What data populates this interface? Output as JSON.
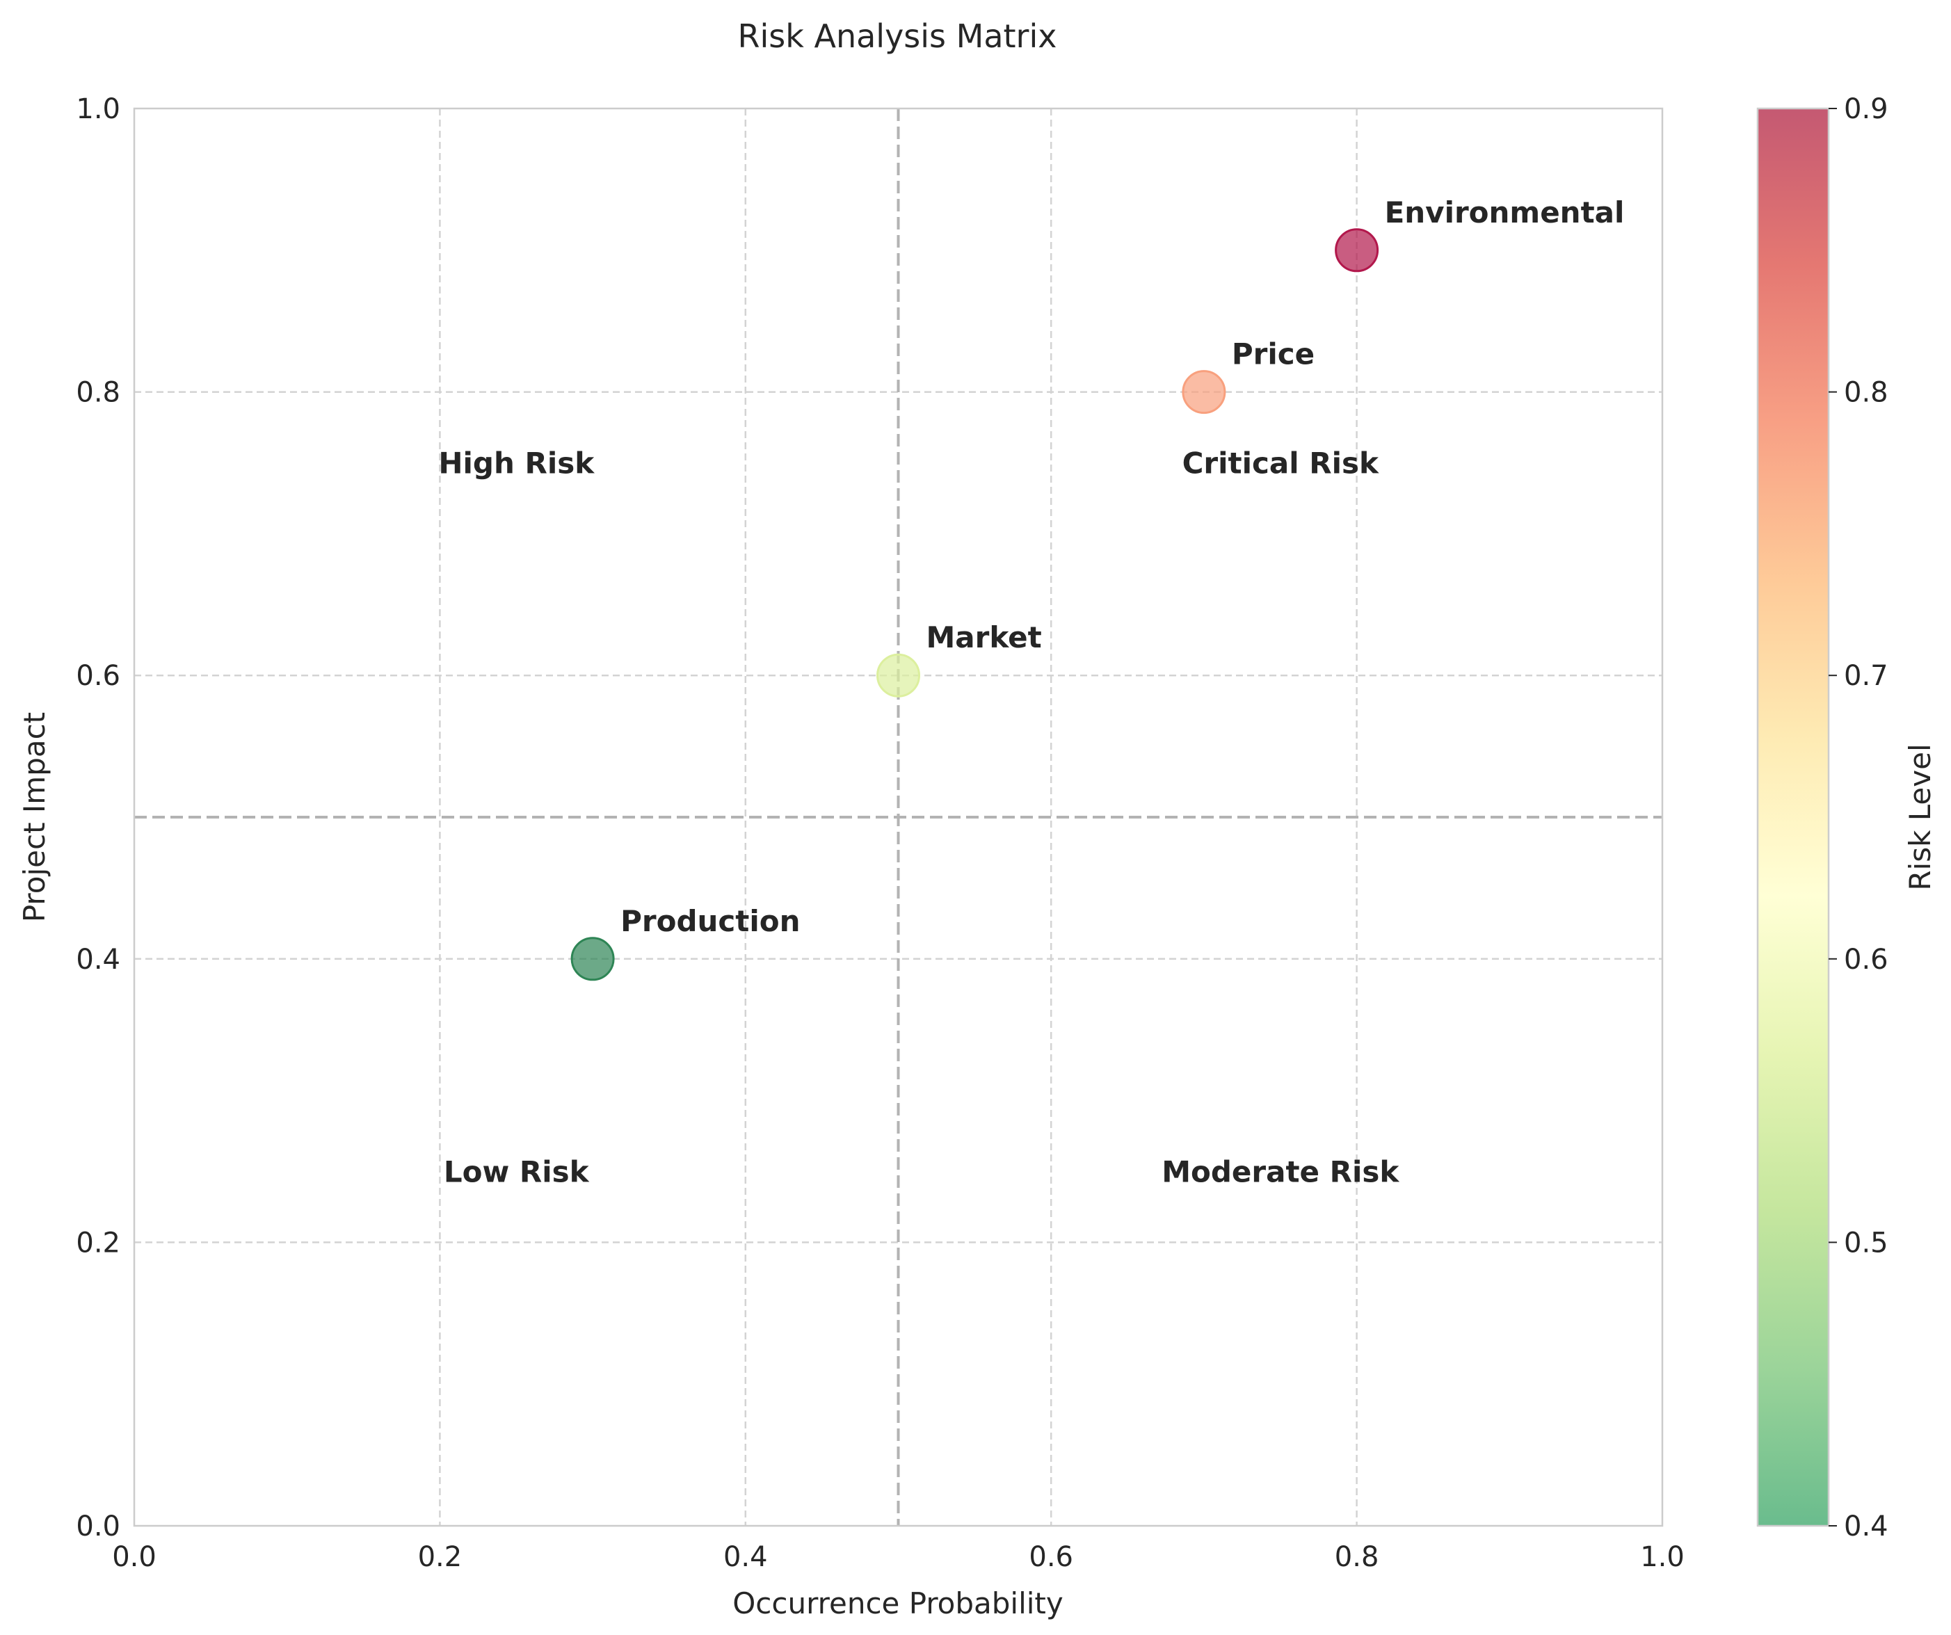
{
  "chart_data": {
    "type": "scatter",
    "title": "Risk Analysis Matrix",
    "xlabel": "Occurrence Probability",
    "ylabel": "Project Impact",
    "xlim": [
      0,
      1
    ],
    "ylim": [
      0,
      1
    ],
    "xticks": [
      "0.0",
      "0.2",
      "0.4",
      "0.6",
      "0.8",
      "1.0"
    ],
    "yticks": [
      "0.0",
      "0.2",
      "0.4",
      "0.6",
      "0.8",
      "1.0"
    ],
    "grid": true,
    "threshold_lines": {
      "x": 0.5,
      "y": 0.5
    },
    "points": [
      {
        "name": "Production",
        "x": 0.3,
        "y": 0.4,
        "risk_level": 0.4,
        "color": "#2e8555"
      },
      {
        "name": "Market",
        "x": 0.5,
        "y": 0.6,
        "risk_level": 0.6,
        "color": "#dcef9e"
      },
      {
        "name": "Price",
        "x": 0.7,
        "y": 0.8,
        "risk_level": 0.8,
        "color": "#f8a07e"
      },
      {
        "name": "Environmental",
        "x": 0.8,
        "y": 0.9,
        "risk_level": 0.9,
        "color": "#b2184c"
      }
    ],
    "quadrant_labels": [
      {
        "text": "High Risk",
        "x": 0.25,
        "y": 0.75
      },
      {
        "text": "Critical Risk",
        "x": 0.75,
        "y": 0.75
      },
      {
        "text": "Low Risk",
        "x": 0.25,
        "y": 0.25
      },
      {
        "text": "Moderate Risk",
        "x": 0.75,
        "y": 0.25
      }
    ],
    "colorbar": {
      "label": "Risk Level",
      "range": [
        0.4,
        0.9
      ],
      "ticks": [
        "0.4",
        "0.5",
        "0.6",
        "0.7",
        "0.8",
        "0.9"
      ],
      "colormap": "RdYlGn_r",
      "colors": [
        "#1a9850",
        "#66bd63",
        "#a6d96a",
        "#d9ef8b",
        "#ffffbf",
        "#fee08b",
        "#fdae61",
        "#f46d43",
        "#d73027",
        "#a50026"
      ]
    }
  }
}
